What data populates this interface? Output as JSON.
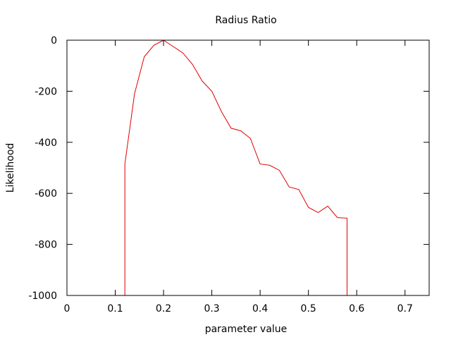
{
  "chart_data": {
    "type": "line",
    "title": "Radius Ratio",
    "xlabel": "parameter value",
    "ylabel": "Likelihood",
    "xlim": [
      0,
      0.75
    ],
    "ylim": [
      -1000,
      0
    ],
    "x_ticks": [
      "0",
      "0.1",
      "0.2",
      "0.3",
      "0.4",
      "0.5",
      "0.6",
      "0.7"
    ],
    "y_ticks": [
      "0",
      "-200",
      "-400",
      "-600",
      "-800",
      "-1000"
    ],
    "grid": false,
    "series": [
      {
        "color": "#e00000",
        "x": [
          0.12,
          0.12,
          0.14,
          0.16,
          0.18,
          0.2,
          0.22,
          0.24,
          0.26,
          0.28,
          0.3,
          0.32,
          0.34,
          0.36,
          0.38,
          0.4,
          0.42,
          0.44,
          0.46,
          0.48,
          0.5,
          0.52,
          0.54,
          0.56,
          0.58,
          0.58
        ],
        "y": [
          -1000,
          -485,
          -210,
          -65,
          -20,
          0,
          -25,
          -50,
          -95,
          -160,
          -200,
          -280,
          -345,
          -355,
          -385,
          -485,
          -490,
          -510,
          -575,
          -585,
          -655,
          -675,
          -650,
          -695,
          -697,
          -1000
        ]
      }
    ]
  },
  "colors": {
    "axis": "#000000",
    "series": "#e00000"
  }
}
